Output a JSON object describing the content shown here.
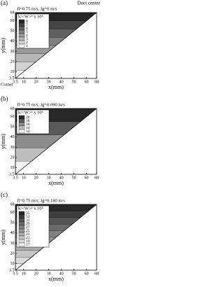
{
  "chart_data": [
    {
      "type": "contour",
      "panel_label": "(a)",
      "top_note": "Duct center",
      "corner_note": "Corner",
      "subtitle": "Jl=0.75 m/s, Jg=0 m/s",
      "colorbar_title": "k/<W>² x 10³",
      "levels": [
        8,
        7,
        6,
        5,
        4,
        3,
        2,
        1
      ],
      "xlabel": "x(mm)",
      "ylabel": "y(mm)",
      "xlim": [
        3.5,
        68
      ],
      "xticks": [
        3.5,
        10,
        20,
        30,
        40,
        50,
        60,
        68
      ],
      "ylim": [
        3.5,
        68
      ],
      "yticks": [
        3.5,
        10,
        20,
        30,
        40,
        50,
        60,
        68
      ]
    },
    {
      "type": "contour",
      "panel_label": "(b)",
      "subtitle": "Jl=0.75 m/s, Jg=0.090 m/s",
      "colorbar_title": "k/<W>² x 10³",
      "levels": [
        20,
        18,
        16,
        14,
        12
      ],
      "xlabel": "x(mm)",
      "ylabel": "y(mm)",
      "xlim": [
        3.5,
        68
      ],
      "xticks": [
        3.5,
        10,
        20,
        30,
        40,
        50,
        60,
        68
      ],
      "ylim": [
        3.5,
        68
      ],
      "yticks": [
        3.5,
        10,
        20,
        30,
        40,
        50,
        60,
        68
      ]
    },
    {
      "type": "contour",
      "panel_label": "(c)",
      "subtitle": "Jl=0.75 m/s, Jg=0.180 m/s",
      "colorbar_title": "k/<W>² x 10³",
      "levels": [
        35,
        33,
        31,
        29,
        27,
        25,
        23,
        21,
        19,
        17
      ],
      "xlabel": "x(mm)",
      "ylabel": "y(mm)",
      "xlim": [
        3.5,
        68
      ],
      "xticks": [
        3.5,
        10,
        20,
        30,
        40,
        50,
        60,
        68
      ],
      "ylim": [
        3.5,
        68
      ],
      "yticks": [
        3.5,
        10,
        20,
        30,
        40,
        50,
        60,
        68
      ]
    }
  ]
}
